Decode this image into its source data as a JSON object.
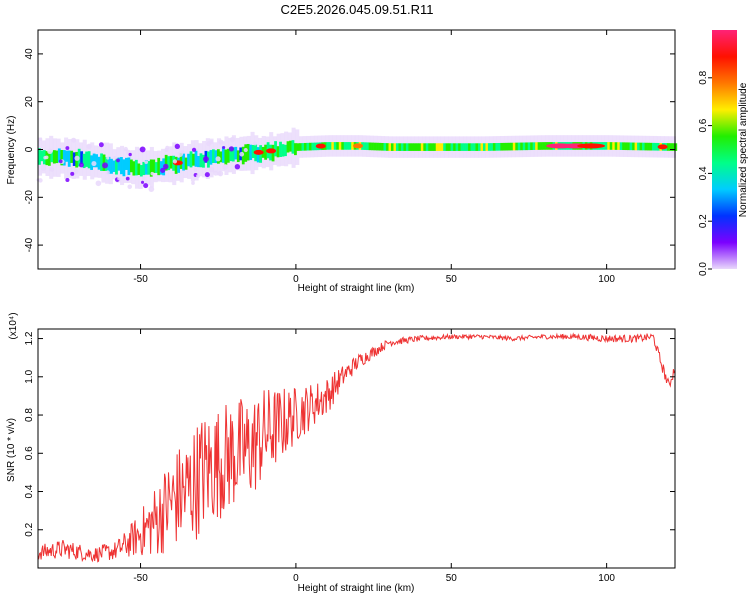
{
  "title": "C2E5.2026.045.09.51.R11",
  "chart_data": [
    {
      "type": "heatmap",
      "name": "spectrogram",
      "xlabel": "Height of straight line (km)",
      "ylabel": "Frequency (Hz)",
      "xlim": [
        -83,
        122
      ],
      "ylim": [
        -50,
        50
      ],
      "xticks": [
        -50,
        0,
        50,
        100
      ],
      "yticks": [
        40,
        20,
        0,
        -20,
        -40
      ],
      "xtick_labels": [
        "-50",
        "0",
        "50",
        "100"
      ],
      "ytick_labels": [
        "40",
        "20",
        "0",
        "-20",
        "-40"
      ],
      "ridge": {
        "x": [
          -83,
          -70,
          -60,
          -50,
          -40,
          -30,
          -20,
          -10,
          0,
          10,
          20,
          30,
          40,
          60,
          80,
          100,
          122
        ],
        "frequency": [
          -3,
          -4,
          -6,
          -8,
          -6,
          -4,
          -2,
          -1,
          1,
          1.5,
          1.5,
          1,
          1,
          1,
          1.5,
          1.5,
          1
        ]
      },
      "colorbar": {
        "label": "Normalized spectral amplitude",
        "range": [
          0,
          1
        ],
        "ticks": [
          0.0,
          0.2,
          0.4,
          0.6,
          0.8
        ],
        "tick_labels": [
          "0.0",
          "0.2",
          "0.4",
          "0.6",
          "0.8"
        ],
        "colors": [
          "#e9d8fb",
          "#7b00ff",
          "#0033ff",
          "#00ccff",
          "#00ff88",
          "#22ee00",
          "#ffee00",
          "#ff7700",
          "#ff1100",
          "#ff2277"
        ]
      }
    },
    {
      "type": "line",
      "name": "snr",
      "xlabel": "Height of straight line (km)",
      "ylabel": "SNR (10 * v/v)",
      "multiplier": "(x10⁴)",
      "xlim": [
        -83,
        122
      ],
      "ylim": [
        0.0,
        1.25
      ],
      "xticks": [
        -50,
        0,
        50,
        100
      ],
      "yticks": [
        0.2,
        0.4,
        0.6,
        0.8,
        1.0,
        1.2
      ],
      "xtick_labels": [
        "-50",
        "0",
        "50",
        "100"
      ],
      "ytick_labels": [
        "0.2",
        "0.4",
        "0.6",
        "0.8",
        "1.0",
        "1.2"
      ],
      "color": "#ee3333",
      "series": [
        {
          "name": "SNR",
          "x": [
            -83,
            -75,
            -65,
            -58,
            -55,
            -50,
            -45,
            -40,
            -35,
            -30,
            -25,
            -20,
            -15,
            -10,
            -5,
            0,
            5,
            10,
            15,
            20,
            25,
            30,
            40,
            50,
            60,
            70,
            80,
            90,
            100,
            110,
            115,
            117,
            120,
            122
          ],
          "y": [
            0.08,
            0.1,
            0.07,
            0.09,
            0.12,
            0.18,
            0.25,
            0.35,
            0.4,
            0.5,
            0.55,
            0.6,
            0.62,
            0.7,
            0.75,
            0.8,
            0.85,
            0.9,
            1.0,
            1.08,
            1.13,
            1.18,
            1.2,
            1.21,
            1.21,
            1.2,
            1.21,
            1.21,
            1.2,
            1.2,
            1.21,
            1.1,
            0.95,
            1.05
          ],
          "noise": [
            0.04,
            0.05,
            0.04,
            0.05,
            0.07,
            0.12,
            0.2,
            0.25,
            0.3,
            0.32,
            0.3,
            0.3,
            0.28,
            0.25,
            0.2,
            0.15,
            0.12,
            0.1,
            0.06,
            0.04,
            0.03,
            0.02,
            0.015,
            0.012,
            0.012,
            0.012,
            0.012,
            0.015,
            0.02,
            0.02,
            0.02,
            0.03,
            0.03,
            0.03
          ]
        }
      ]
    }
  ]
}
